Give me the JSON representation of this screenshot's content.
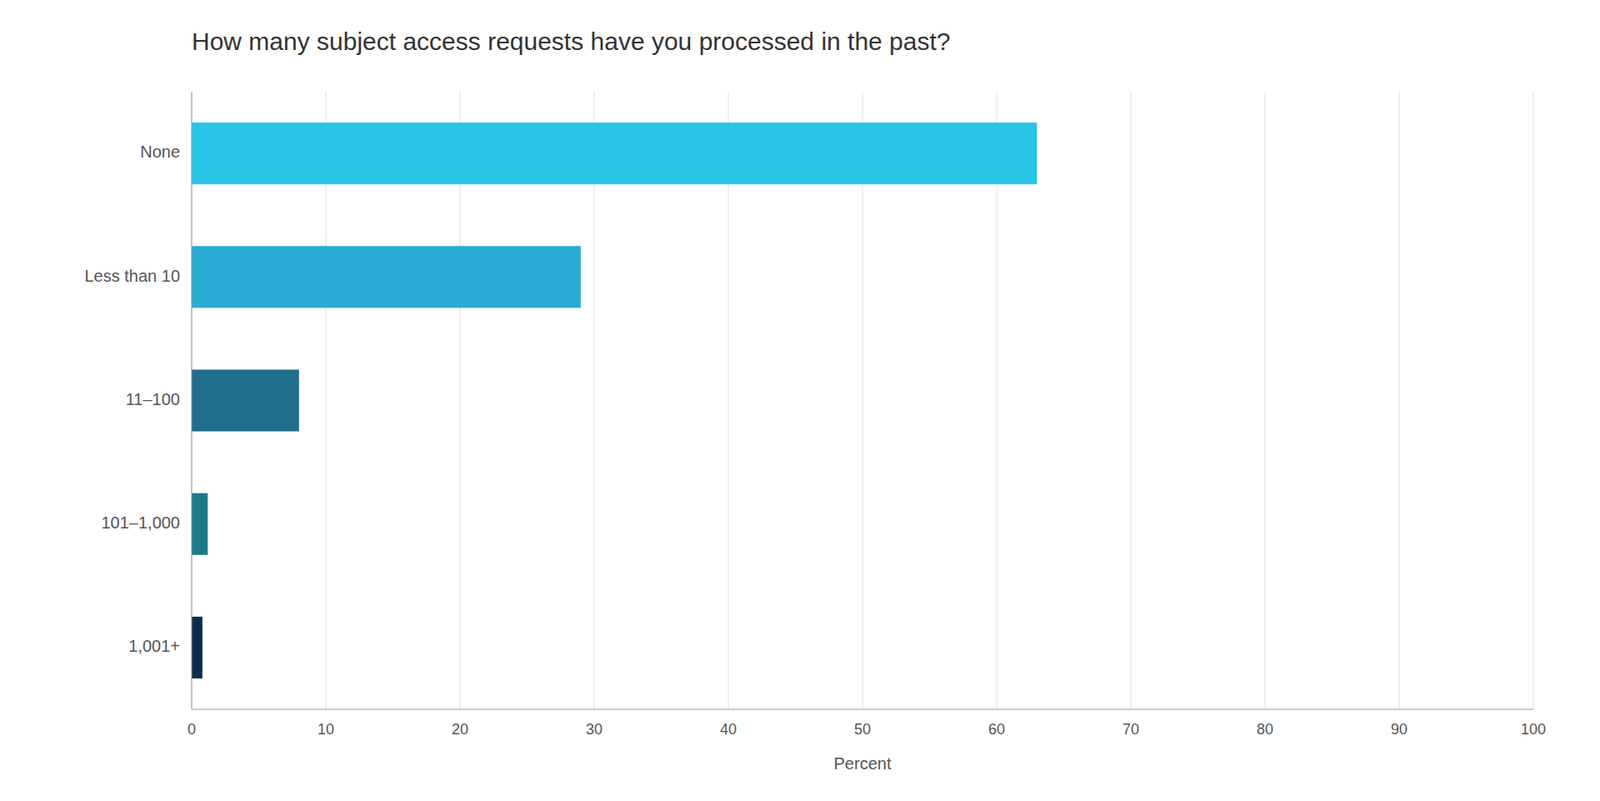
{
  "chart_data": {
    "type": "bar",
    "orientation": "horizontal",
    "title": "How many subject access requests have you processed in the past?",
    "categories": [
      "None",
      "Less than 10",
      "11–100",
      "101–1,000",
      "1,001+"
    ],
    "values": [
      63,
      29,
      8,
      1.2,
      0.8
    ],
    "colors": [
      "#29C5E6",
      "#29ABD4",
      "#1F6E8C",
      "#1B7A8A",
      "#0D2D4E"
    ],
    "xlabel": "Percent",
    "xlim": [
      0,
      100
    ],
    "xticks": [
      0,
      10,
      20,
      30,
      40,
      50,
      60,
      70,
      80,
      90,
      100
    ],
    "grid": true
  }
}
